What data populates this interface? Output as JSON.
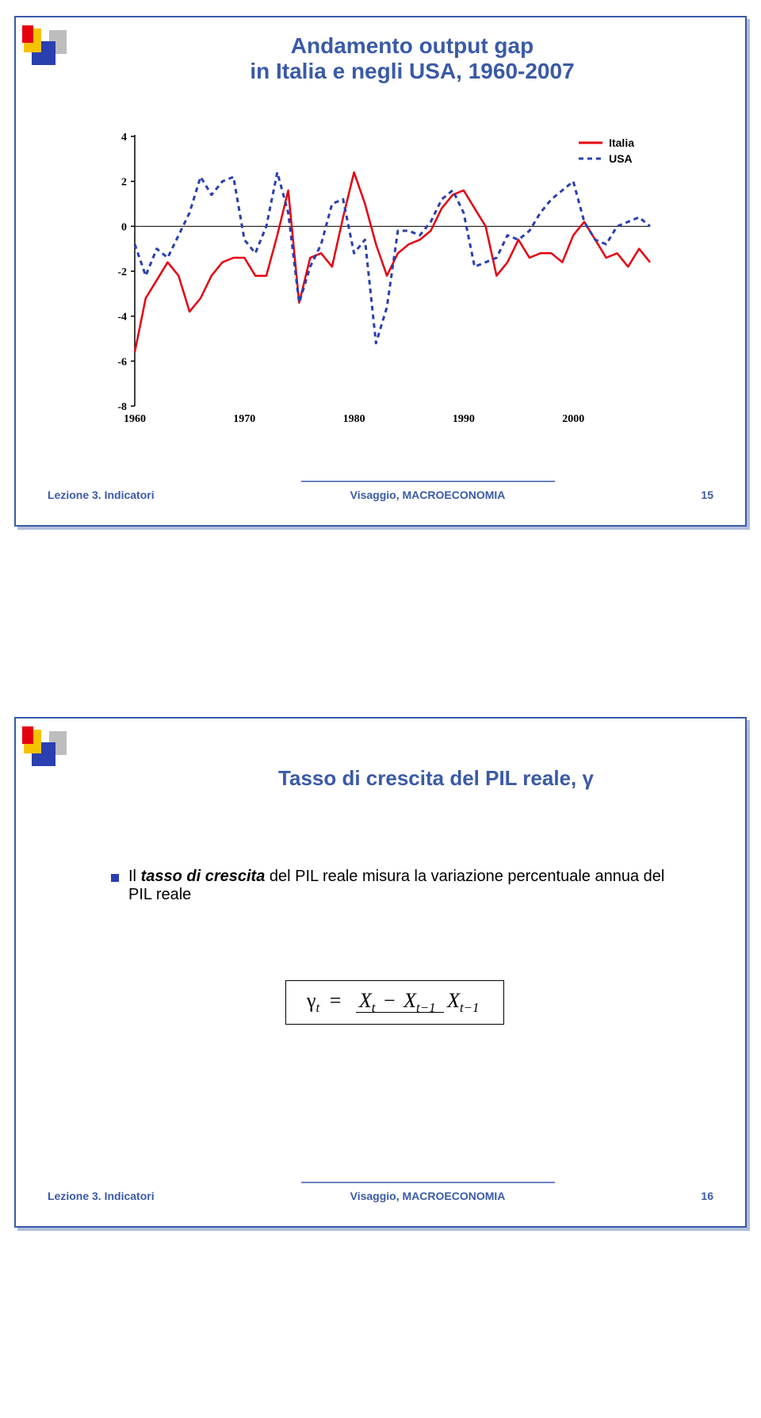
{
  "slide1": {
    "title_line1": "Andamento output gap",
    "title_line2": "in Italia e negli USA, 1960-2007",
    "title_fontsize": 28,
    "chart": {
      "type": "line",
      "xlim": [
        1960,
        2007
      ],
      "ylim": [
        -8,
        4
      ],
      "ytick_step": 2,
      "yticks": [
        4,
        2,
        0,
        -2,
        -4,
        -6,
        -8
      ],
      "xticks": [
        1960,
        1970,
        1980,
        1990,
        2000
      ],
      "x_tick_fontsize": 14,
      "y_tick_fontsize": 14,
      "tick_color": "#000000",
      "axis_color": "#000000",
      "series": [
        {
          "name": "Italia",
          "color": "#e5000f",
          "stroke_width": 2.5,
          "dash": "none",
          "points": [
            [
              1960,
              -5.6
            ],
            [
              1961,
              -3.2
            ],
            [
              1962,
              -2.4
            ],
            [
              1963,
              -1.6
            ],
            [
              1964,
              -2.2
            ],
            [
              1965,
              -3.8
            ],
            [
              1966,
              -3.2
            ],
            [
              1967,
              -2.2
            ],
            [
              1968,
              -1.6
            ],
            [
              1969,
              -1.4
            ],
            [
              1970,
              -1.4
            ],
            [
              1971,
              -2.2
            ],
            [
              1972,
              -2.2
            ],
            [
              1973,
              -0.4
            ],
            [
              1974,
              1.6
            ],
            [
              1975,
              -3.4
            ],
            [
              1976,
              -1.4
            ],
            [
              1977,
              -1.2
            ],
            [
              1978,
              -1.8
            ],
            [
              1979,
              0.4
            ],
            [
              1980,
              2.4
            ],
            [
              1981,
              1.0
            ],
            [
              1982,
              -0.8
            ],
            [
              1983,
              -2.2
            ],
            [
              1984,
              -1.2
            ],
            [
              1985,
              -0.8
            ],
            [
              1986,
              -0.6
            ],
            [
              1987,
              -0.2
            ],
            [
              1988,
              0.8
            ],
            [
              1989,
              1.4
            ],
            [
              1990,
              1.6
            ],
            [
              1991,
              0.8
            ],
            [
              1992,
              0.0
            ],
            [
              1993,
              -2.2
            ],
            [
              1994,
              -1.6
            ],
            [
              1995,
              -0.6
            ],
            [
              1996,
              -1.4
            ],
            [
              1997,
              -1.2
            ],
            [
              1998,
              -1.2
            ],
            [
              1999,
              -1.6
            ],
            [
              2000,
              -0.4
            ],
            [
              2001,
              0.2
            ],
            [
              2002,
              -0.6
            ],
            [
              2003,
              -1.4
            ],
            [
              2004,
              -1.2
            ],
            [
              2005,
              -1.8
            ],
            [
              2006,
              -1.0
            ],
            [
              2007,
              -1.6
            ]
          ]
        },
        {
          "name": "USA",
          "color": "#2a3fb0",
          "stroke_width": 3,
          "dash": "6,5",
          "points": [
            [
              1960,
              -0.8
            ],
            [
              1961,
              -2.2
            ],
            [
              1962,
              -1.0
            ],
            [
              1963,
              -1.4
            ],
            [
              1964,
              -0.4
            ],
            [
              1965,
              0.6
            ],
            [
              1966,
              2.2
            ],
            [
              1967,
              1.4
            ],
            [
              1968,
              2.0
            ],
            [
              1969,
              2.2
            ],
            [
              1970,
              -0.6
            ],
            [
              1971,
              -1.2
            ],
            [
              1972,
              0.0
            ],
            [
              1973,
              2.4
            ],
            [
              1974,
              0.6
            ],
            [
              1975,
              -3.4
            ],
            [
              1976,
              -1.8
            ],
            [
              1977,
              -0.8
            ],
            [
              1978,
              1.0
            ],
            [
              1979,
              1.2
            ],
            [
              1980,
              -1.2
            ],
            [
              1981,
              -0.6
            ],
            [
              1982,
              -5.2
            ],
            [
              1983,
              -3.6
            ],
            [
              1984,
              -0.2
            ],
            [
              1985,
              -0.2
            ],
            [
              1986,
              -0.4
            ],
            [
              1987,
              0.2
            ],
            [
              1988,
              1.2
            ],
            [
              1989,
              1.6
            ],
            [
              1990,
              0.6
            ],
            [
              1991,
              -1.8
            ],
            [
              1992,
              -1.6
            ],
            [
              1993,
              -1.4
            ],
            [
              1994,
              -0.4
            ],
            [
              1995,
              -0.6
            ],
            [
              1996,
              -0.2
            ],
            [
              1997,
              0.6
            ],
            [
              1998,
              1.2
            ],
            [
              1999,
              1.6
            ],
            [
              2000,
              2.0
            ],
            [
              2001,
              0.2
            ],
            [
              2002,
              -0.6
            ],
            [
              2003,
              -0.8
            ],
            [
              2004,
              0.0
            ],
            [
              2005,
              0.2
            ],
            [
              2006,
              0.4
            ],
            [
              2007,
              0.0
            ]
          ]
        }
      ],
      "legend": {
        "items": [
          "Italia",
          "USA"
        ],
        "fontsize": 14,
        "colors": [
          "#e5000f",
          "#2a3fb0"
        ],
        "dashes": [
          "none",
          "6,5"
        ]
      }
    },
    "footer": {
      "left": "Lezione 3. Indicatori",
      "center": "Visaggio, MACROECONOMIA",
      "page": "15",
      "fontsize": 14,
      "color": "#3a5aa8",
      "center_line_color": "#3a5aa8"
    }
  },
  "slide2": {
    "title": "Tasso di crescita del PIL reale, γ",
    "title_fontsize": 26,
    "title_color": "#3a5aa8",
    "bullet": {
      "square_color": "#2a3fb0",
      "text_before": "Il ",
      "text_em": "tasso di crescita",
      "text_after": " del PIL reale misura la variazione percentuale annua del PIL reale",
      "fontsize": 20,
      "color": "#000000"
    },
    "formula": {
      "lhs_symbol": "γ",
      "lhs_sub": "t",
      "equals": "=",
      "num_left": "X",
      "num_left_sub": "t",
      "minus": "−",
      "num_right": "X",
      "num_right_sub": "t−1",
      "den": "X",
      "den_sub": "t−1",
      "fontsize": 26,
      "border_color": "#000000"
    },
    "footer": {
      "left": "Lezione 3. Indicatori",
      "center": "Visaggio, MACROECONOMIA",
      "page": "16",
      "fontsize": 14,
      "color": "#3a5aa8",
      "center_line_color": "#3a5aa8"
    }
  },
  "logo": {
    "red": "#e5000f",
    "yellow": "#f6c200",
    "blue": "#2a3fb0",
    "grey": "#bdbdbd"
  }
}
